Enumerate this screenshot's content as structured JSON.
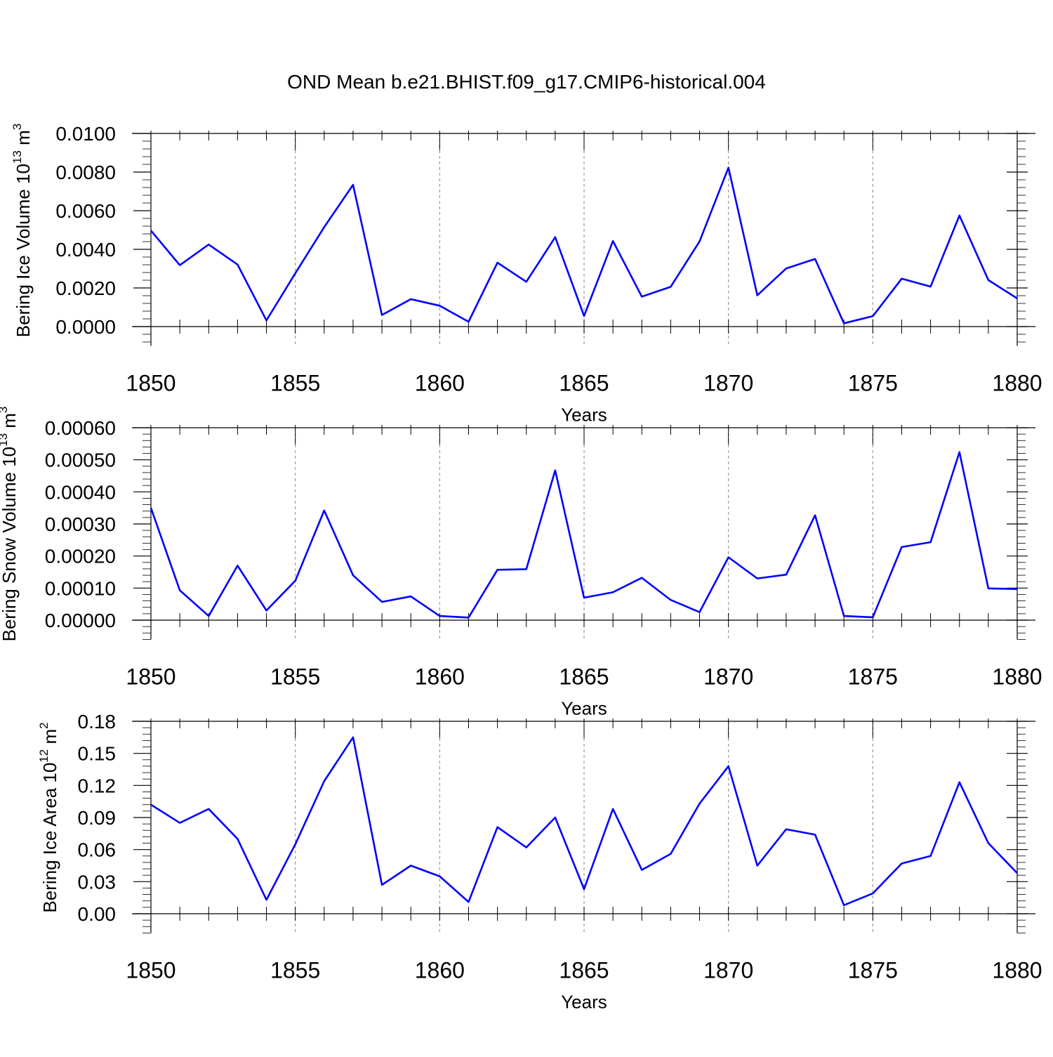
{
  "title": "OND Mean b.e21.BHIST.f09_g17.CMIP6-historical.004",
  "colors": {
    "series": "#0000ff",
    "axis": "#000000",
    "grid": "#999999"
  },
  "chart_data": [
    {
      "type": "line",
      "title": "",
      "xlabel": "Years",
      "ylabel": "Bering Ice Volume 10",
      "ylabel_exp": "13",
      "ylabel_unit": "m",
      "ylabel_unit_exp": "3",
      "xlim": [
        1850,
        1880
      ],
      "ylim": [
        -0.001,
        0.01
      ],
      "xticks": [
        1850,
        1855,
        1860,
        1865,
        1870,
        1875,
        1880
      ],
      "xtick_labels": [
        "1850",
        "1855",
        "1860",
        "1865",
        "1870",
        "1875",
        "1880"
      ],
      "yticks": [
        0.0,
        0.002,
        0.004,
        0.006,
        0.008,
        0.01
      ],
      "ytick_labels": [
        "0.0000",
        "0.0020",
        "0.0040",
        "0.0060",
        "0.0080",
        "0.0100"
      ],
      "grid": "vertical dashed at major x ticks",
      "x": [
        1850,
        1851,
        1852,
        1853,
        1854,
        1855,
        1856,
        1857,
        1858,
        1859,
        1860,
        1861,
        1862,
        1863,
        1864,
        1865,
        1866,
        1867,
        1868,
        1869,
        1870,
        1871,
        1872,
        1873,
        1874,
        1875,
        1876,
        1877,
        1878,
        1879,
        1880
      ],
      "series": [
        {
          "name": "Bering Ice Volume",
          "values": [
            0.00497,
            0.00318,
            0.00425,
            0.00321,
            0.00032,
            0.00276,
            0.00515,
            0.00734,
            0.0006,
            0.00142,
            0.00108,
            0.00025,
            0.00331,
            0.00232,
            0.00463,
            0.00055,
            0.00443,
            0.00155,
            0.00206,
            0.00441,
            0.00823,
            0.00162,
            0.00301,
            0.0035,
            0.00017,
            0.00054,
            0.00248,
            0.00207,
            0.00575,
            0.00241,
            0.00146
          ]
        }
      ]
    },
    {
      "type": "line",
      "title": "",
      "xlabel": "Years",
      "ylabel": "Bering Snow Volume 10",
      "ylabel_exp": "13",
      "ylabel_unit": "m",
      "ylabel_unit_exp": "3",
      "xlim": [
        1850,
        1880
      ],
      "ylim": [
        -6e-05,
        0.0006
      ],
      "xticks": [
        1850,
        1855,
        1860,
        1865,
        1870,
        1875,
        1880
      ],
      "xtick_labels": [
        "1850",
        "1855",
        "1860",
        "1865",
        "1870",
        "1875",
        "1880"
      ],
      "yticks": [
        0.0,
        0.0001,
        0.0002,
        0.0003,
        0.0004,
        0.0005,
        0.0006
      ],
      "ytick_labels": [
        "0.00000",
        "0.00010",
        "0.00020",
        "0.00030",
        "0.00040",
        "0.00050",
        "0.00060"
      ],
      "grid": "vertical dashed at major x ticks",
      "x": [
        1850,
        1851,
        1852,
        1853,
        1854,
        1855,
        1856,
        1857,
        1858,
        1859,
        1860,
        1861,
        1862,
        1863,
        1864,
        1865,
        1866,
        1867,
        1868,
        1869,
        1870,
        1871,
        1872,
        1873,
        1874,
        1875,
        1876,
        1877,
        1878,
        1879,
        1880
      ],
      "series": [
        {
          "name": "Bering Snow Volume",
          "values": [
            0.00035,
            9.3e-05,
            1.3e-05,
            0.00017,
            3e-05,
            0.000123,
            0.000342,
            0.00014,
            5.7e-05,
            7.4e-05,
            1.3e-05,
            8e-06,
            0.000157,
            0.000159,
            0.000467,
            7e-05,
            8.7e-05,
            0.000132,
            6.3e-05,
            2.5e-05,
            0.000196,
            0.00013,
            0.000142,
            0.000327,
            1.3e-05,
            9e-06,
            0.000228,
            0.000243,
            0.000524,
            9.9e-05,
            9.7e-05
          ]
        }
      ]
    },
    {
      "type": "line",
      "title": "",
      "xlabel": "Years",
      "ylabel": "Bering Ice Area 10",
      "ylabel_exp": "12",
      "ylabel_unit": "m",
      "ylabel_unit_exp": "2",
      "xlim": [
        1850,
        1880
      ],
      "ylim": [
        -0.018,
        0.18
      ],
      "xticks": [
        1850,
        1855,
        1860,
        1865,
        1870,
        1875,
        1880
      ],
      "xtick_labels": [
        "1850",
        "1855",
        "1860",
        "1865",
        "1870",
        "1875",
        "1880"
      ],
      "yticks": [
        0.0,
        0.03,
        0.06,
        0.09,
        0.12,
        0.15,
        0.18
      ],
      "ytick_labels": [
        "0.00",
        "0.03",
        "0.06",
        "0.09",
        "0.12",
        "0.15",
        "0.18"
      ],
      "grid": "vertical dashed at major x ticks",
      "x": [
        1850,
        1851,
        1852,
        1853,
        1854,
        1855,
        1856,
        1857,
        1858,
        1859,
        1860,
        1861,
        1862,
        1863,
        1864,
        1865,
        1866,
        1867,
        1868,
        1869,
        1870,
        1871,
        1872,
        1873,
        1874,
        1875,
        1876,
        1877,
        1878,
        1879,
        1880
      ],
      "series": [
        {
          "name": "Bering Ice Area",
          "values": [
            0.102,
            0.085,
            0.098,
            0.07,
            0.013,
            0.065,
            0.124,
            0.165,
            0.027,
            0.045,
            0.035,
            0.011,
            0.081,
            0.062,
            0.09,
            0.023,
            0.098,
            0.041,
            0.056,
            0.103,
            0.138,
            0.045,
            0.079,
            0.074,
            0.008,
            0.019,
            0.047,
            0.054,
            0.123,
            0.066,
            0.038
          ]
        }
      ]
    }
  ]
}
